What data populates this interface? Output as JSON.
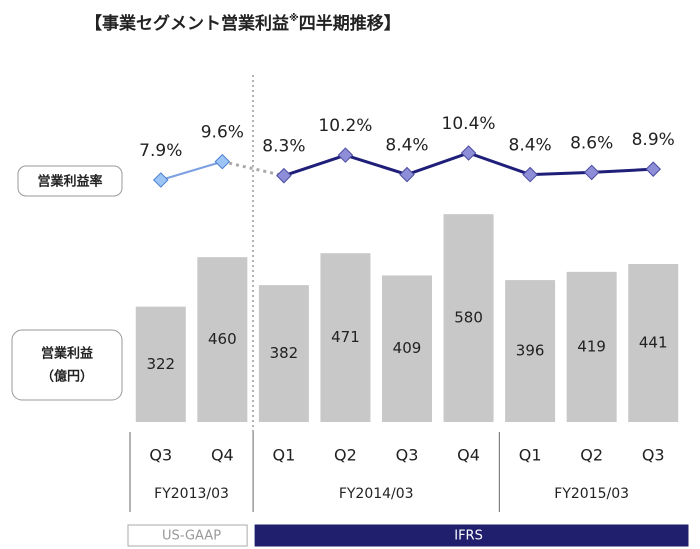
{
  "chart_data": {
    "type": "bar",
    "title": "【事業セグメント営業利益",
    "title_mark": "※",
    "title_rest": "四半期推移】",
    "bar_label": "営業利益",
    "bar_unit": "（億円）",
    "line_label": "営業利益率",
    "categories": [
      "Q3",
      "Q4",
      "Q1",
      "Q2",
      "Q3",
      "Q4",
      "Q1",
      "Q2",
      "Q3"
    ],
    "groups": [
      {
        "label": "FY2013/03",
        "size": 2
      },
      {
        "label": "FY2014/03",
        "size": 4
      },
      {
        "label": "FY2015/03",
        "size": 3
      }
    ],
    "standards": [
      {
        "label": "US-GAAP",
        "size": 2
      },
      {
        "label": "IFRS",
        "size": 7
      }
    ],
    "values": [
      322,
      460,
      382,
      471,
      409,
      580,
      396,
      419,
      441
    ],
    "color": "#c8c8c8",
    "ylim": [
      0,
      600
    ],
    "series": [
      {
        "type": "line",
        "axis": "y2",
        "color": "#1f1f7a",
        "values": [
          7.9,
          9.6,
          8.3,
          10.2,
          8.4,
          10.4,
          8.4,
          8.6,
          8.9
        ],
        "value_labels": [
          "7.9%",
          "9.6%",
          "8.3%",
          "10.2%",
          "8.4%",
          "10.4%",
          "8.4%",
          "8.6%",
          "8.9%"
        ]
      }
    ],
    "y2lim": [
      6,
      12
    ]
  }
}
